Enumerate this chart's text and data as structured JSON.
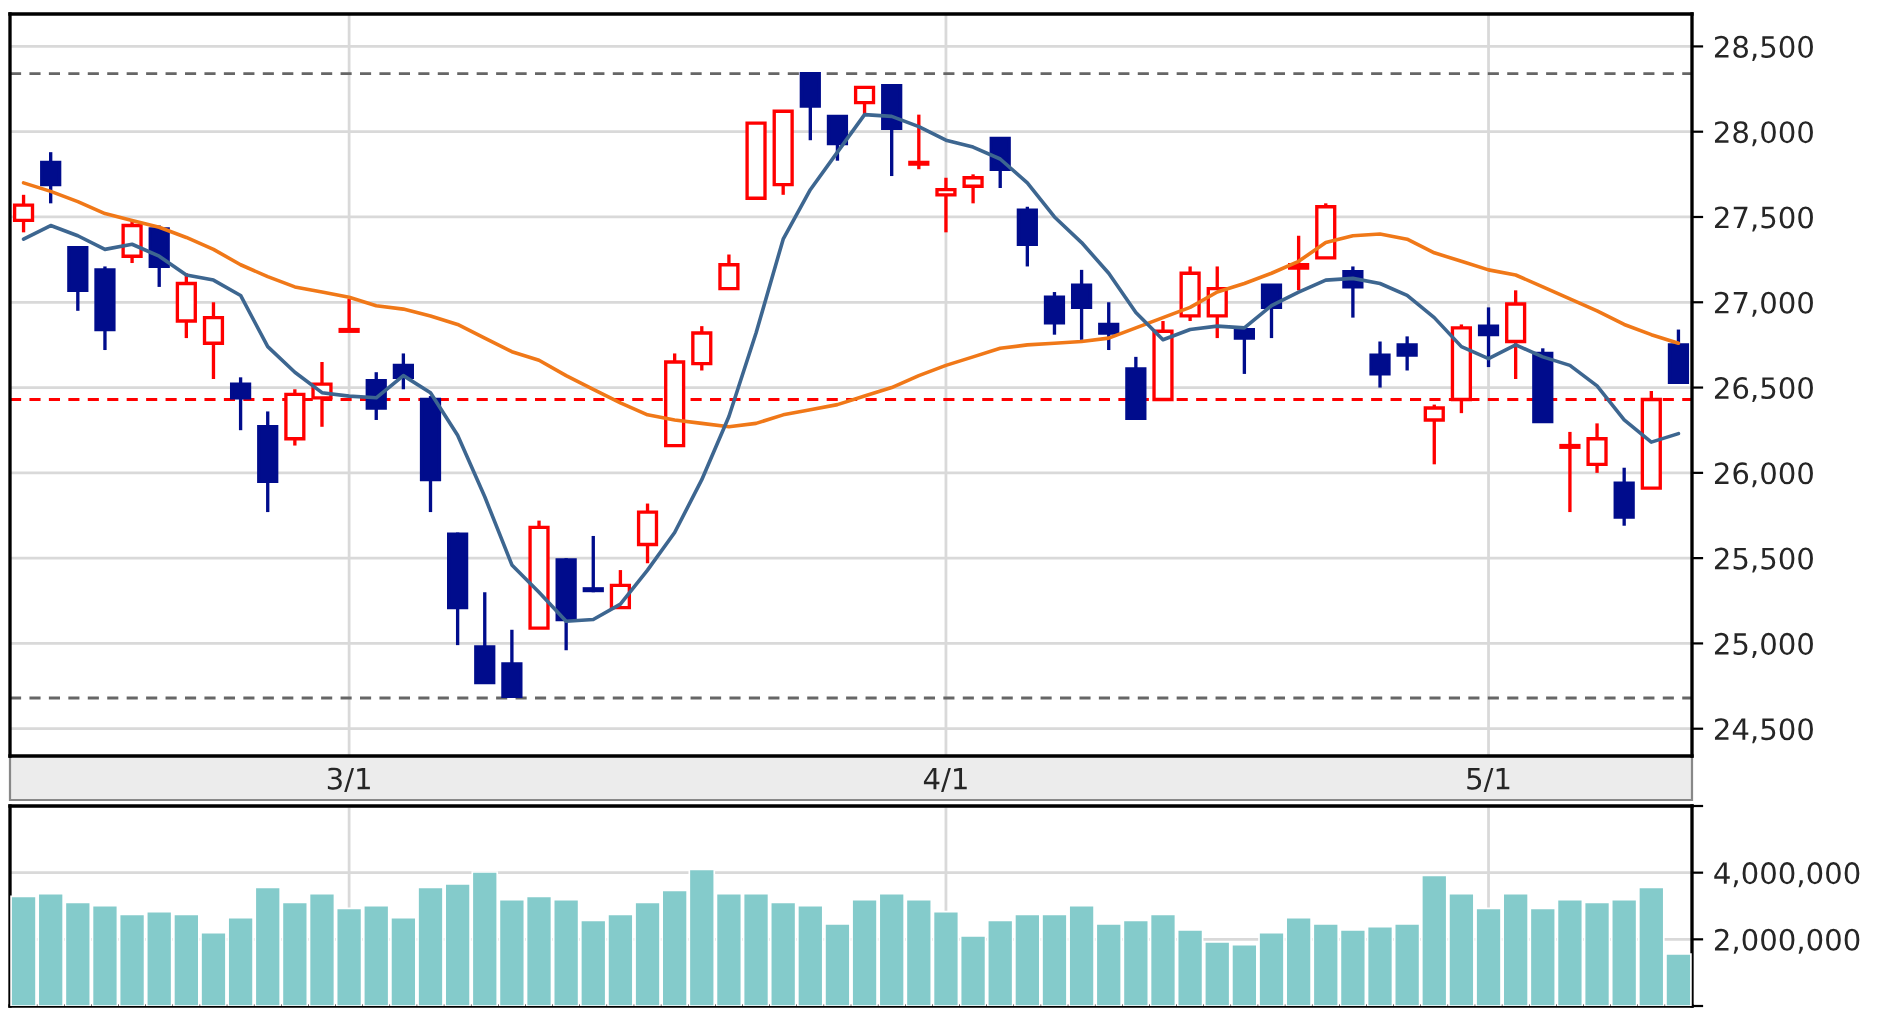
{
  "chart_data": [
    {
      "type": "candlestick",
      "categories": [
        null,
        null,
        null,
        null,
        null,
        null,
        null,
        null,
        null,
        null,
        null,
        null,
        "3/1",
        null,
        null,
        null,
        null,
        null,
        null,
        null,
        null,
        null,
        null,
        null,
        null,
        null,
        null,
        null,
        null,
        null,
        null,
        null,
        null,
        null,
        "4/1",
        null,
        null,
        null,
        null,
        null,
        null,
        null,
        null,
        null,
        null,
        null,
        null,
        null,
        null,
        null,
        null,
        null,
        null,
        null,
        "5/1",
        null,
        null,
        null,
        null,
        null,
        null,
        null
      ],
      "ohlc": [
        [
          27480,
          27630,
          27410,
          27570
        ],
        [
          27820,
          27880,
          27580,
          27690
        ],
        [
          27320,
          27330,
          26950,
          27070
        ],
        [
          27190,
          27210,
          26720,
          26840
        ],
        [
          27270,
          27480,
          27230,
          27450
        ],
        [
          27430,
          27450,
          27090,
          27210
        ],
        [
          26890,
          27170,
          26790,
          27110
        ],
        [
          26760,
          27000,
          26550,
          26910
        ],
        [
          26520,
          26560,
          26250,
          26440
        ],
        [
          26270,
          26360,
          25770,
          25950
        ],
        [
          26200,
          26490,
          26160,
          26460
        ],
        [
          26440,
          26650,
          26270,
          26520
        ],
        [
          26830,
          27020,
          26830,
          26840
        ],
        [
          26540,
          26590,
          26310,
          26380
        ],
        [
          26630,
          26700,
          26490,
          26560
        ],
        [
          26430,
          26450,
          25770,
          25960
        ],
        [
          25640,
          25650,
          24990,
          25210
        ],
        [
          24980,
          25300,
          24770,
          24770
        ],
        [
          24880,
          25080,
          24680,
          24690
        ],
        [
          25090,
          25720,
          25090,
          25680
        ],
        [
          25490,
          25500,
          24960,
          25140
        ],
        [
          25320,
          25630,
          25300,
          25310
        ],
        [
          25210,
          25430,
          25210,
          25340
        ],
        [
          25580,
          25820,
          25470,
          25770
        ],
        [
          26160,
          26700,
          26160,
          26650
        ],
        [
          26640,
          26860,
          26600,
          26820
        ],
        [
          27080,
          27280,
          27080,
          27220
        ],
        [
          27610,
          28050,
          27610,
          28050
        ],
        [
          27690,
          28120,
          27630,
          28120
        ],
        [
          28340,
          28340,
          27950,
          28150
        ],
        [
          28090,
          28090,
          27830,
          27930
        ],
        [
          28170,
          28260,
          28100,
          28260
        ],
        [
          28270,
          28270,
          27740,
          28020
        ],
        [
          27810,
          28100,
          27780,
          27820
        ],
        [
          27630,
          27730,
          27410,
          27660
        ],
        [
          27680,
          27750,
          27580,
          27730
        ],
        [
          27960,
          27960,
          27670,
          27780
        ],
        [
          27540,
          27560,
          27210,
          27340
        ],
        [
          27030,
          27060,
          26810,
          26880
        ],
        [
          27100,
          27190,
          26780,
          26970
        ],
        [
          26870,
          27000,
          26720,
          26820
        ],
        [
          26610,
          26680,
          26310,
          26320
        ],
        [
          26430,
          26890,
          26430,
          26830
        ],
        [
          26920,
          27210,
          26890,
          27170
        ],
        [
          26920,
          27210,
          26790,
          27080
        ],
        [
          26840,
          26860,
          26580,
          26790
        ],
        [
          27100,
          27100,
          26790,
          26970
        ],
        [
          27200,
          27390,
          27070,
          27220
        ],
        [
          27260,
          27580,
          27260,
          27560
        ],
        [
          27180,
          27210,
          26910,
          27090
        ],
        [
          26690,
          26770,
          26500,
          26580
        ],
        [
          26750,
          26800,
          26600,
          26690
        ],
        [
          26310,
          26400,
          26050,
          26380
        ],
        [
          26430,
          26870,
          26350,
          26850
        ],
        [
          26860,
          26970,
          26620,
          26810
        ],
        [
          26770,
          27070,
          26550,
          26990
        ],
        [
          26700,
          26730,
          26300,
          26300
        ],
        [
          26150,
          26240,
          25770,
          26160
        ],
        [
          26050,
          26290,
          26000,
          26200
        ],
        [
          25940,
          26030,
          25690,
          25740
        ],
        [
          25910,
          26480,
          25910,
          26430
        ],
        [
          26750,
          26840,
          26530,
          26530
        ]
      ],
      "colors": [
        "#ff0000",
        "#000c8c",
        "#000c8c",
        "#000c8c",
        "#ff0000",
        "#000c8c",
        "#ff0000",
        "#ff0000",
        "#000c8c",
        "#000c8c",
        "#ff0000",
        "#ff0000",
        "#ff0000",
        "#000c8c",
        "#000c8c",
        "#000c8c",
        "#000c8c",
        "#000c8c",
        "#000c8c",
        "#ff0000",
        "#000c8c",
        "#000c8c",
        "#ff0000",
        "#ff0000",
        "#ff0000",
        "#ff0000",
        "#ff0000",
        "#ff0000",
        "#ff0000",
        "#000c8c",
        "#000c8c",
        "#ff0000",
        "#000c8c",
        "#ff0000",
        "#ff0000",
        "#ff0000",
        "#000c8c",
        "#000c8c",
        "#000c8c",
        "#000c8c",
        "#000c8c",
        "#000c8c",
        "#ff0000",
        "#ff0000",
        "#ff0000",
        "#000c8c",
        "#000c8c",
        "#ff0000",
        "#ff0000",
        "#000c8c",
        "#000c8c",
        "#000c8c",
        "#ff0000",
        "#ff0000",
        "#000c8c",
        "#ff0000",
        "#000c8c",
        "#ff0000",
        "#ff0000",
        "#000c8c",
        "#ff0000",
        "#000c8c"
      ],
      "series": [
        {
          "type": "line",
          "color": "#f07818",
          "values": [
            27700,
            27650,
            27590,
            27520,
            27480,
            27440,
            27380,
            27310,
            27220,
            27150,
            27090,
            27060,
            27030,
            26980,
            26960,
            26920,
            26870,
            26790,
            26710,
            26660,
            26570,
            26490,
            26410,
            26340,
            26310,
            26290,
            26270,
            26290,
            26340,
            26370,
            26400,
            26450,
            26500,
            26570,
            26630,
            26680,
            26730,
            26750,
            26760,
            26770,
            26790,
            26850,
            26910,
            26970,
            27060,
            27110,
            27170,
            27240,
            27350,
            27390,
            27400,
            27370,
            27290,
            27240,
            27190,
            27160,
            27090,
            27020,
            26950,
            26870,
            26810,
            26760
          ]
        },
        {
          "type": "line",
          "color": "#3d6690",
          "values": [
            27370,
            27450,
            27390,
            27310,
            27340,
            27270,
            27160,
            27130,
            27040,
            26740,
            26590,
            26470,
            26450,
            26440,
            26570,
            26470,
            26220,
            25860,
            25460,
            25300,
            25130,
            25140,
            25230,
            25430,
            25650,
            25960,
            26330,
            26820,
            27370,
            27660,
            27880,
            28100,
            28090,
            28030,
            27950,
            27910,
            27840,
            27700,
            27500,
            27350,
            27170,
            26940,
            26780,
            26840,
            26860,
            26850,
            26980,
            27060,
            27130,
            27140,
            27110,
            27040,
            26910,
            26740,
            26670,
            26750,
            26680,
            26630,
            26510,
            26310,
            26180,
            26230
          ]
        }
      ],
      "ylim": [
        24340,
        28690
      ],
      "yticks": [
        {
          "value": 24500,
          "label": "24,500"
        },
        {
          "value": 25000,
          "label": "25,000"
        },
        {
          "value": 25500,
          "label": "25,500"
        },
        {
          "value": 26000,
          "label": "26,000"
        },
        {
          "value": 26500,
          "label": "26,500"
        },
        {
          "value": 27000,
          "label": "27,000"
        },
        {
          "value": 27500,
          "label": "27,500"
        },
        {
          "value": 28000,
          "label": "28,000"
        },
        {
          "value": 28500,
          "label": "28,500"
        }
      ],
      "ref_lines": [
        {
          "axis": "y",
          "value": 28340,
          "label": null,
          "color": "#666666",
          "line_style": "dashed"
        },
        {
          "axis": "y",
          "value": 24680,
          "label": null,
          "color": "#666666",
          "line_style": "dashed"
        },
        {
          "axis": "y",
          "value": 26430,
          "label": null,
          "color": "#ff0000",
          "line_style": "dashed"
        }
      ],
      "grid": true
    },
    {
      "type": "bar",
      "categories": [
        null,
        null,
        null,
        null,
        null,
        null,
        null,
        null,
        null,
        null,
        null,
        null,
        null,
        null,
        null,
        null,
        null,
        null,
        null,
        null,
        null,
        null,
        null,
        null,
        null,
        null,
        null,
        null,
        null,
        null,
        null,
        null,
        null,
        null,
        null,
        null,
        null,
        null,
        null,
        null,
        null,
        null,
        null,
        null,
        null,
        null,
        null,
        null,
        null,
        null,
        null,
        null,
        null,
        null,
        null,
        null,
        null,
        null,
        null,
        null,
        null,
        null
      ],
      "color": "#84cbcb",
      "values": [
        3290000,
        3370000,
        3110000,
        3010000,
        2750000,
        2830000,
        2750000,
        2200000,
        2650000,
        3560000,
        3110000,
        3370000,
        2930000,
        3010000,
        2650000,
        3560000,
        3660000,
        4020000,
        3190000,
        3290000,
        3190000,
        2570000,
        2750000,
        3110000,
        3470000,
        4100000,
        3370000,
        3370000,
        3110000,
        3010000,
        2460000,
        3190000,
        3370000,
        3190000,
        2830000,
        2100000,
        2570000,
        2750000,
        2750000,
        3010000,
        2460000,
        2570000,
        2750000,
        2280000,
        1920000,
        1840000,
        2200000,
        2650000,
        2460000,
        2280000,
        2380000,
        2460000,
        3920000,
        3370000,
        2930000,
        3370000,
        2930000,
        3190000,
        3110000,
        3190000,
        3560000,
        1560000
      ],
      "ylim": [
        0,
        6000000
      ],
      "yticks": [
        {
          "value": 0,
          "label": null
        },
        {
          "value": 2000000,
          "label": "2,000,000"
        },
        {
          "value": 4000000,
          "label": "4,000,000"
        },
        {
          "value": 6000000,
          "label": null
        }
      ],
      "tick_labels": "y",
      "grid": true
    }
  ]
}
